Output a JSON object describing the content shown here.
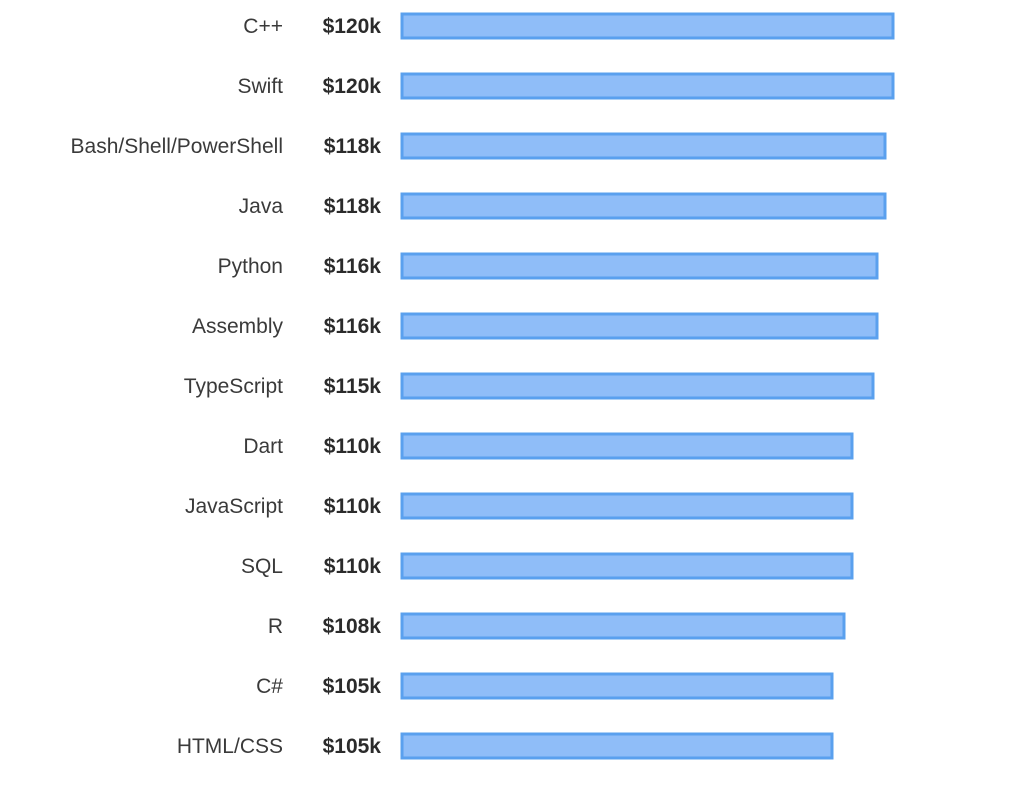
{
  "chart_data": {
    "type": "bar",
    "orientation": "horizontal",
    "title": "",
    "xlabel": "",
    "ylabel": "",
    "value_prefix": "$",
    "value_suffix": "k",
    "categories": [
      "C++",
      "Swift",
      "Bash/Shell/PowerShell",
      "Java",
      "Python",
      "Assembly",
      "TypeScript",
      "Dart",
      "JavaScript",
      "SQL",
      "R",
      "C#",
      "HTML/CSS"
    ],
    "values": [
      120,
      120,
      118,
      118,
      116,
      116,
      115,
      110,
      110,
      110,
      108,
      105,
      105
    ],
    "value_labels": [
      "$120k",
      "$120k",
      "$118k",
      "$118k",
      "$116k",
      "$116k",
      "$115k",
      "$110k",
      "$110k",
      "$110k",
      "$108k",
      "$105k",
      "$105k"
    ],
    "xlim": [
      0,
      120
    ],
    "grid": false,
    "legend": false
  },
  "colors": {
    "bar_fill": "#8fbdf8",
    "bar_stroke": "#5aa0ee",
    "label_text": "#3a3a3a",
    "value_text": "#2b2b2b",
    "background": "#ffffff"
  }
}
